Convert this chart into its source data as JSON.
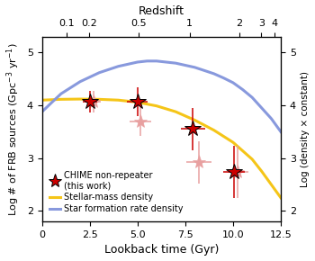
{
  "title": "Redshift",
  "xlabel": "Lookback time (Gyr)",
  "ylabel_left": "Log # of FRB sources (Gpc$^{-3}$ yr$^{-1}$)",
  "ylabel_right": "Log (density × constant)",
  "xlim": [
    0.0,
    12.5
  ],
  "ylim": [
    1.8,
    5.3
  ],
  "redshift_ticks": [
    0.1,
    0.2,
    0.5,
    1,
    2,
    3,
    4
  ],
  "redshift_lookback": [
    1.286,
    2.491,
    5.047,
    7.731,
    10.322,
    11.476,
    12.163
  ],
  "frb_x": [
    2.5,
    2.7,
    5.0,
    5.15,
    7.9,
    8.2,
    10.05,
    10.25
  ],
  "frb_y": [
    4.07,
    4.07,
    4.07,
    3.7,
    3.55,
    2.92,
    2.74,
    2.74
  ],
  "frb_xerr_lo": [
    0.38,
    0.38,
    0.55,
    0.55,
    0.65,
    0.65,
    0.55,
    0.55
  ],
  "frb_xerr_hi": [
    0.38,
    0.38,
    0.55,
    0.55,
    0.65,
    0.65,
    0.55,
    0.55
  ],
  "frb_yerr_lo": [
    0.2,
    0.2,
    0.28,
    0.28,
    0.4,
    0.4,
    0.5,
    0.5
  ],
  "frb_yerr_hi": [
    0.2,
    0.2,
    0.28,
    0.28,
    0.4,
    0.4,
    0.5,
    0.5
  ],
  "frb_solid": [
    true,
    false,
    true,
    false,
    true,
    false,
    true,
    false
  ],
  "stellar_mass_x": [
    0.01,
    1.0,
    2.0,
    3.0,
    4.0,
    5.0,
    6.0,
    7.0,
    8.0,
    9.0,
    10.0,
    11.0,
    11.5,
    12.0,
    12.5
  ],
  "stellar_mass_y": [
    4.1,
    4.115,
    4.12,
    4.115,
    4.1,
    4.06,
    3.99,
    3.88,
    3.72,
    3.53,
    3.3,
    2.98,
    2.75,
    2.5,
    2.25
  ],
  "sfr_x": [
    0.01,
    0.5,
    1.0,
    2.0,
    3.0,
    4.0,
    5.0,
    5.5,
    6.0,
    7.0,
    8.0,
    9.0,
    9.5,
    10.0,
    10.5,
    11.0,
    12.0,
    12.5
  ],
  "sfr_y": [
    3.88,
    4.05,
    4.22,
    4.45,
    4.62,
    4.74,
    4.82,
    4.84,
    4.84,
    4.8,
    4.72,
    4.6,
    4.52,
    4.43,
    4.3,
    4.15,
    3.75,
    3.5
  ],
  "stellar_mass_color": "#f5c518",
  "sfr_color": "#8899dd",
  "frb_solid_color": "#cc0000",
  "frb_faded_color": "#e8a0a0",
  "legend_label_frb": "CHIME non-repeater\n(this work)",
  "legend_label_stellar": "Stellar-mass density",
  "legend_label_sfr": "Star formation rate density",
  "frb_solid_ecolor": "#cc0000",
  "frb_faded_ecolor": "#e8a0a0",
  "figsize": [
    3.5,
    2.9
  ],
  "dpi": 100
}
